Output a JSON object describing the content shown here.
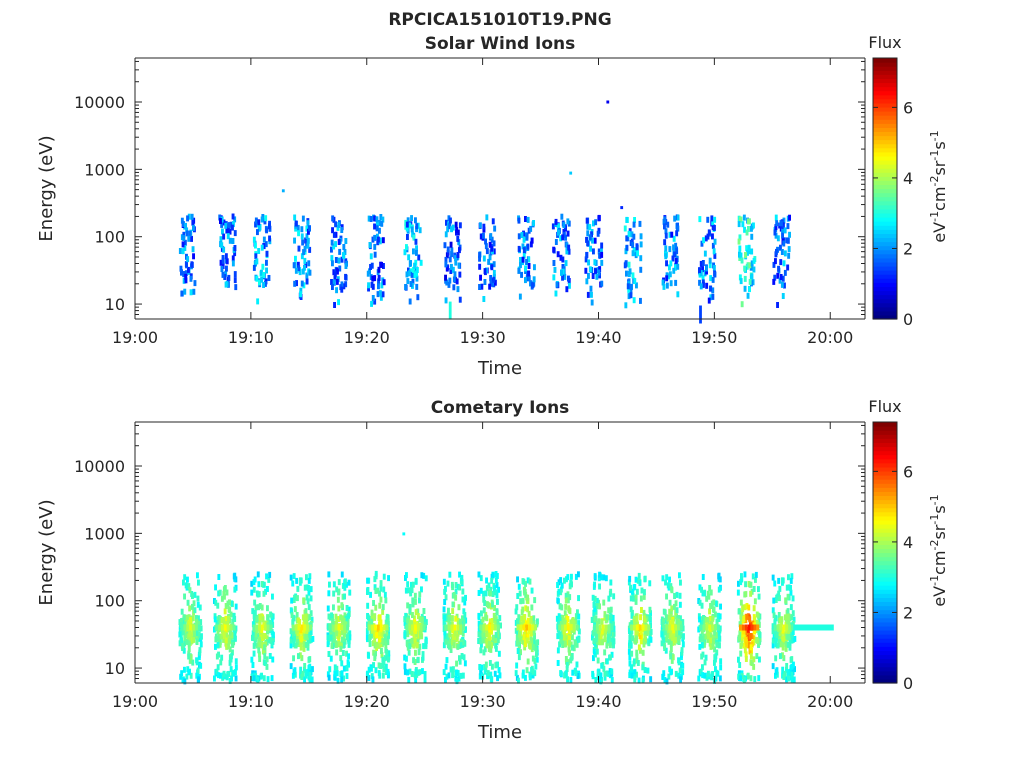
{
  "figure_title": "RPCICA151010T19.PNG",
  "colorbar": {
    "label": "Flux",
    "unit_parts": [
      "eV",
      "-1",
      "cm",
      "-2",
      "sr",
      "-1",
      "s",
      "-1"
    ],
    "ticks": [
      0,
      2,
      4,
      6
    ],
    "range": [
      0,
      7.4
    ],
    "colormap": "jet"
  },
  "chart_data": [
    {
      "type": "heatmap",
      "title": "Solar Wind Ions",
      "xlabel": "Time",
      "ylabel": "Energy (eV)",
      "xlim": [
        "19:00",
        "20:03"
      ],
      "ylim": [
        6,
        45000
      ],
      "yscale": "log",
      "xticks": [
        "19:00",
        "19:10",
        "19:20",
        "19:30",
        "19:40",
        "19:50",
        "20:00"
      ],
      "yticks": [
        10,
        100,
        1000,
        10000
      ],
      "bursts": [
        {
          "time": "19:04.6",
          "flux": 1.8
        },
        {
          "time": "19:08.0",
          "flux": 1.7
        },
        {
          "time": "19:11.0",
          "flux": 2.0
        },
        {
          "time": "19:14.4",
          "flux": 1.9
        },
        {
          "time": "19:17.6",
          "flux": 1.8
        },
        {
          "time": "19:20.8",
          "flux": 1.7
        },
        {
          "time": "19:24.0",
          "flux": 2.1
        },
        {
          "time": "19:27.4",
          "flux": 1.6
        },
        {
          "time": "19:30.4",
          "flux": 1.7
        },
        {
          "time": "19:33.8",
          "flux": 1.8
        },
        {
          "time": "19:36.8",
          "flux": 1.9
        },
        {
          "time": "19:39.6",
          "flux": 1.7
        },
        {
          "time": "19:43.0",
          "flux": 2.1
        },
        {
          "time": "19:46.2",
          "flux": 1.8
        },
        {
          "time": "19:49.4",
          "flux": 1.9
        },
        {
          "time": "19:52.8",
          "flux": 2.8
        },
        {
          "time": "19:55.8",
          "flux": 1.8
        }
      ],
      "isolated_points": [
        {
          "time": "19:12.8",
          "energy": 480,
          "flux": 2.2
        },
        {
          "time": "19:37.6",
          "energy": 880,
          "flux": 2.4
        },
        {
          "time": "19:40.8",
          "energy": 10000,
          "flux": 0.8
        },
        {
          "time": "19:42.0",
          "energy": 270,
          "flux": 1.2
        },
        {
          "time": "19:27.2",
          "energy": 8,
          "flux": 3.0
        },
        {
          "time": "19:48.8",
          "energy": 7,
          "flux": 1.4
        }
      ]
    },
    {
      "type": "heatmap",
      "title": "Cometary Ions",
      "xlabel": "Time",
      "ylabel": "Energy (eV)",
      "xlim": [
        "19:00",
        "20:03"
      ],
      "ylim": [
        6,
        45000
      ],
      "yscale": "log",
      "xticks": [
        "19:00",
        "19:10",
        "19:20",
        "19:30",
        "19:40",
        "19:50",
        "20:00"
      ],
      "yticks": [
        10,
        100,
        1000,
        10000
      ],
      "bursts": [
        {
          "time": "19:04.8",
          "flux": 4.4
        },
        {
          "time": "19:07.8",
          "flux": 4.6
        },
        {
          "time": "19:11.0",
          "flux": 4.5
        },
        {
          "time": "19:14.4",
          "flux": 4.8
        },
        {
          "time": "19:17.6",
          "flux": 4.5
        },
        {
          "time": "19:21.0",
          "flux": 5.0
        },
        {
          "time": "19:24.2",
          "flux": 4.6
        },
        {
          "time": "19:27.6",
          "flux": 4.6
        },
        {
          "time": "19:30.6",
          "flux": 4.7
        },
        {
          "time": "19:33.8",
          "flux": 5.1
        },
        {
          "time": "19:37.4",
          "flux": 4.7
        },
        {
          "time": "19:40.4",
          "flux": 4.4
        },
        {
          "time": "19:43.6",
          "flux": 4.9
        },
        {
          "time": "19:46.4",
          "flux": 4.5
        },
        {
          "time": "19:49.6",
          "flux": 4.4
        },
        {
          "time": "19:53.0",
          "flux": 6.4
        },
        {
          "time": "19:56.0",
          "flux": 4.5
        }
      ],
      "isolated_points": [
        {
          "time": "19:23.2",
          "energy": 980,
          "flux": 2.8
        }
      ],
      "band": {
        "from": "19:56.8",
        "to": "20:00.3",
        "energy": 40,
        "flux": 3.0
      }
    }
  ]
}
